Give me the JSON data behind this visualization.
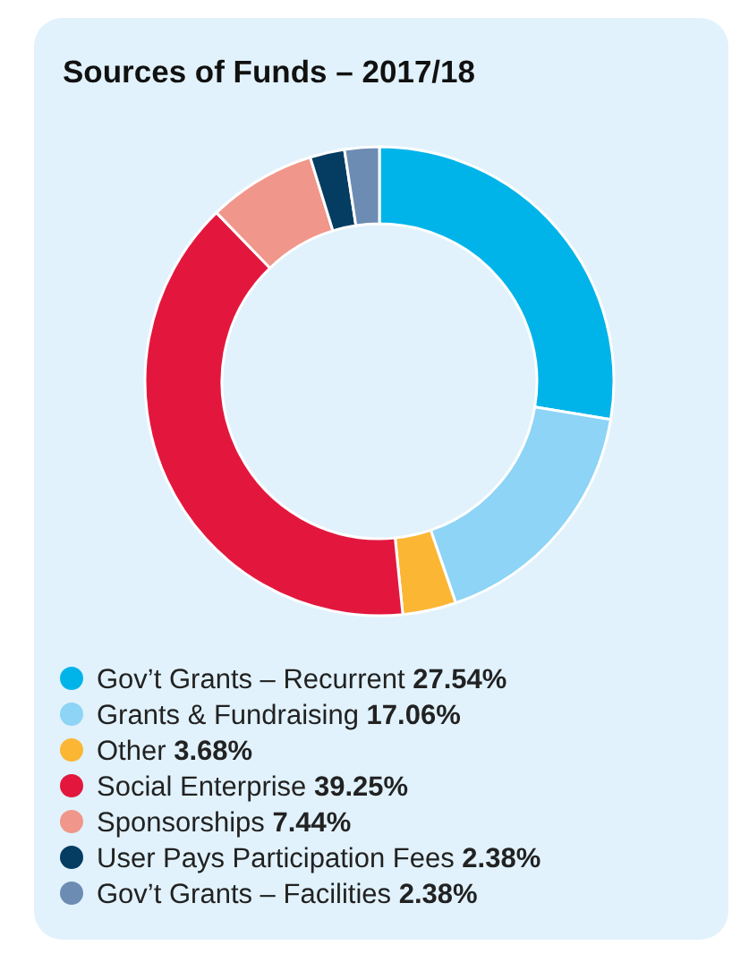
{
  "chart_data": {
    "type": "donut",
    "title": "Sources of Funds – 2017/18",
    "categories": [
      "Gov’t Grants – Recurrent",
      "Grants & Fundraising",
      "Other",
      "Social Enterprise",
      "Sponsorships",
      "User Pays Participation Fees",
      "Gov’t Grants – Facilities"
    ],
    "values": [
      27.54,
      17.06,
      3.68,
      39.25,
      7.44,
      2.38,
      2.38
    ],
    "value_labels": [
      "27.54%",
      "17.06%",
      "3.68%",
      "39.25%",
      "7.44%",
      "2.38%",
      "2.38%"
    ],
    "colors": [
      "#00b4e9",
      "#8dd4f6",
      "#fbb634",
      "#e3173e",
      "#f0968b",
      "#053c62",
      "#6c8cb3"
    ],
    "legend": "bottom"
  }
}
